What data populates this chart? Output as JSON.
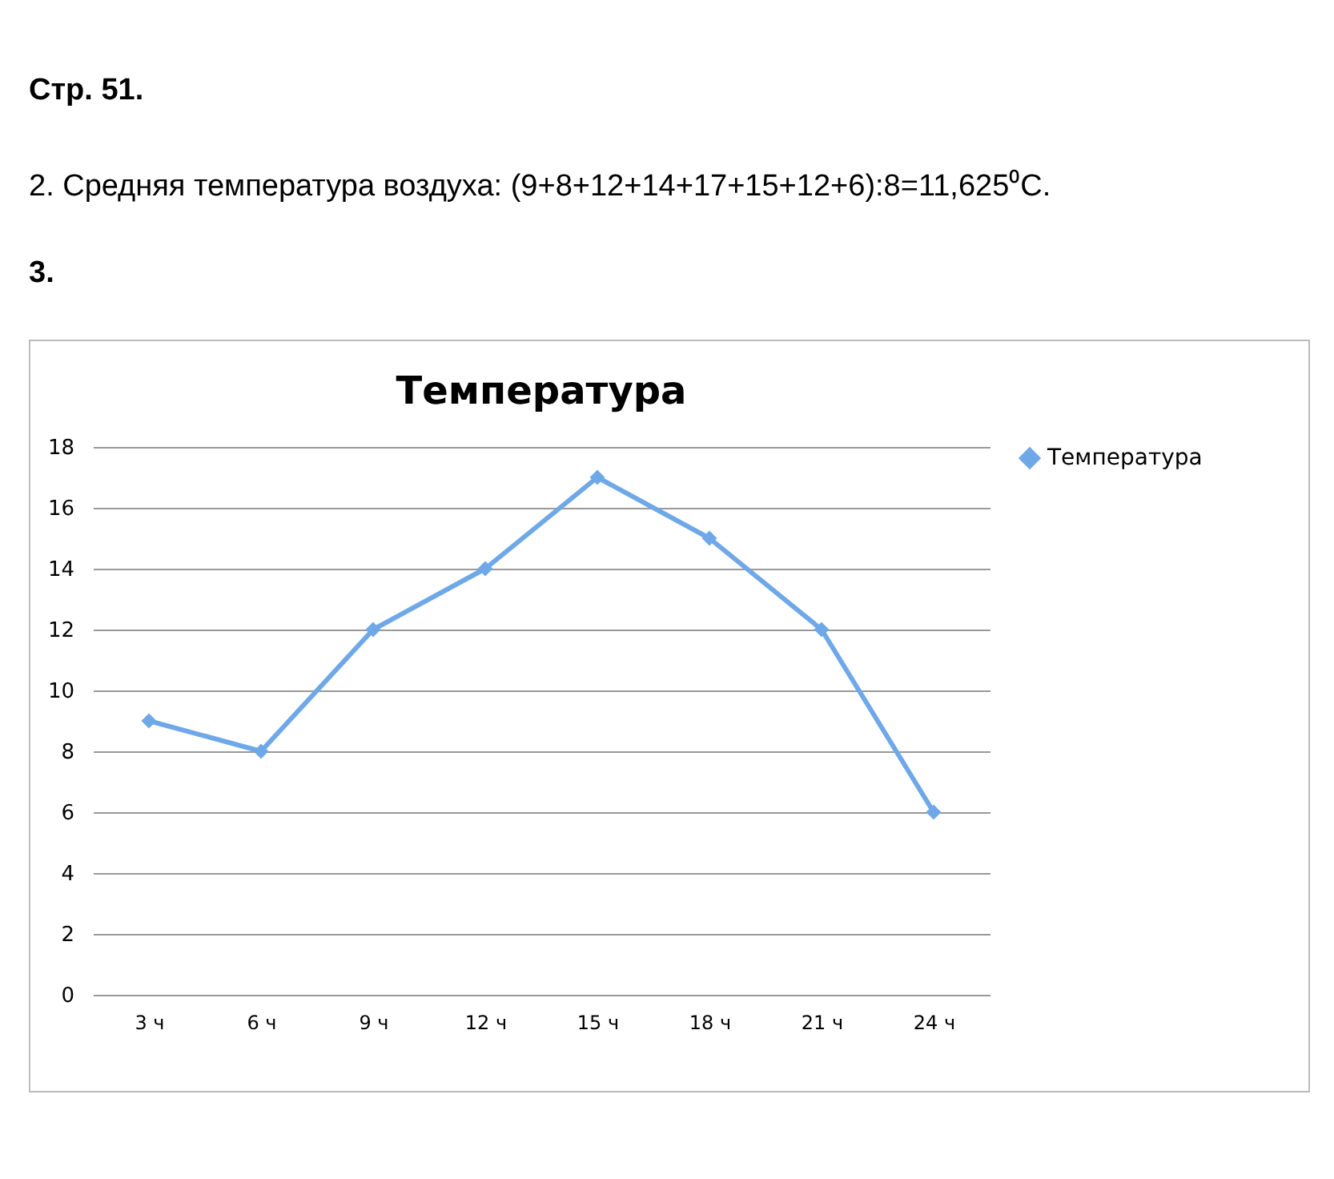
{
  "chart_data": {
    "type": "line",
    "title": "Температура",
    "annotations": [
      "Стр. 51.",
      "2. Средняя температура воздуха: (9+8+12+14+17+15+12+6):8=11,625⁰C.",
      "3."
    ],
    "categories": [
      "3 ч",
      "6 ч",
      "9 ч",
      "12 ч",
      "15 ч",
      "18 ч",
      "21 ч",
      "24 ч"
    ],
    "series": [
      {
        "name": "Температура",
        "color": "#6fa8e8",
        "values": [
          9,
          8,
          12,
          14,
          17,
          15,
          12,
          6
        ]
      }
    ],
    "ylim": [
      0,
      18
    ],
    "yticks": [
      0,
      2,
      4,
      6,
      8,
      10,
      12,
      14,
      16,
      18
    ],
    "grid": "y",
    "legend": "right",
    "marker": "diamond",
    "line_style": "solid"
  }
}
